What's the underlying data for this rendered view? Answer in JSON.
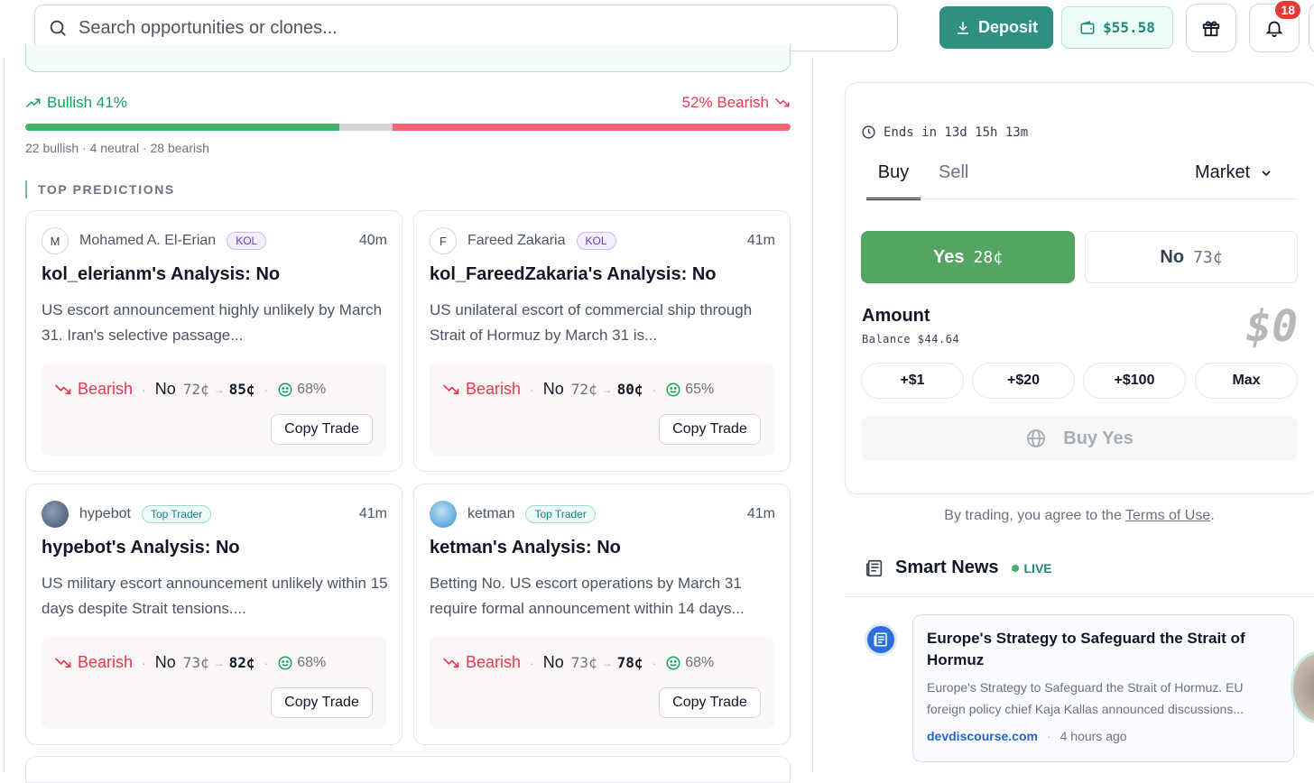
{
  "search": {
    "placeholder": "Search opportunities or clones..."
  },
  "header": {
    "deposit_label": "Deposit",
    "wallet_balance": "$55.58",
    "notification_count": "18"
  },
  "sentiment": {
    "bullish_label": "Bullish 41%",
    "bearish_label": "52% Bearish",
    "bullish_pct": 41,
    "neutral_pct": 7,
    "bearish_pct": 52,
    "counts": "22 bullish · 4 neutral · 28 bearish"
  },
  "top_predictions": {
    "title": "TOP PREDICTIONS",
    "cards": [
      {
        "initial": "M",
        "name": "Mohamed A. El-Erian",
        "badge": "KOL",
        "time": "40m",
        "title": "kol_elerianm's Analysis: No",
        "desc": "US escort announcement highly unlikely by March 31. Iran's selective passage...",
        "stance": "Bearish",
        "side": "No",
        "from": "72¢",
        "to": "85¢",
        "confidence": "68%",
        "copy": "Copy Trade"
      },
      {
        "initial": "F",
        "name": "Fareed Zakaria",
        "badge": "KOL",
        "time": "41m",
        "title": "kol_FareedZakaria's Analysis: No",
        "desc": "US unilateral escort of commercial ship through Strait of Hormuz by March 31 is...",
        "stance": "Bearish",
        "side": "No",
        "from": "72¢",
        "to": "80¢",
        "confidence": "65%",
        "copy": "Copy Trade"
      },
      {
        "initial": "",
        "name": "hypebot",
        "badge": "Top Trader",
        "time": "41m",
        "title": "hypebot's Analysis: No",
        "desc": "US military escort announcement unlikely within 15 days despite Strait tensions....",
        "stance": "Bearish",
        "side": "No",
        "from": "73¢",
        "to": "82¢",
        "confidence": "68%",
        "copy": "Copy Trade"
      },
      {
        "initial": "",
        "name": "ketman",
        "badge": "Top Trader",
        "time": "41m",
        "title": "ketman's Analysis: No",
        "desc": "Betting No. US escort operations by March 31 require formal announcement within 14 days...",
        "stance": "Bearish",
        "side": "No",
        "from": "73¢",
        "to": "78¢",
        "confidence": "68%",
        "copy": "Copy Trade"
      }
    ]
  },
  "trade": {
    "ends": "Ends in 13d 15h 13m",
    "tab_buy": "Buy",
    "tab_sell": "Sell",
    "order_type": "Market",
    "yes_label": "Yes",
    "yes_price": "28¢",
    "no_label": "No",
    "no_price": "73¢",
    "amount_label": "Amount",
    "balance": "Balance $44.64",
    "amount_value": "$0",
    "quick_amounts": [
      "+$1",
      "+$20",
      "+$100",
      "Max"
    ],
    "buy_button": "Buy Yes",
    "terms_prefix": "By trading, you agree to the ",
    "terms_link": "Terms of Use",
    "terms_suffix": "."
  },
  "news": {
    "title": "Smart News",
    "live": "LIVE",
    "item": {
      "title": "Europe's Strategy to Safeguard the Strait of Hormuz",
      "excerpt": "Europe's Strategy to Safeguard the Strait of Hormuz. EU foreign policy chief Kaja Kallas announced discussions...",
      "source": "devdiscourse.com",
      "ago": "4 hours ago"
    }
  },
  "colors": {
    "accent": "#2f8f83",
    "bullish": "#16a05a",
    "bearish": "#e53950",
    "yes": "#54a462"
  }
}
